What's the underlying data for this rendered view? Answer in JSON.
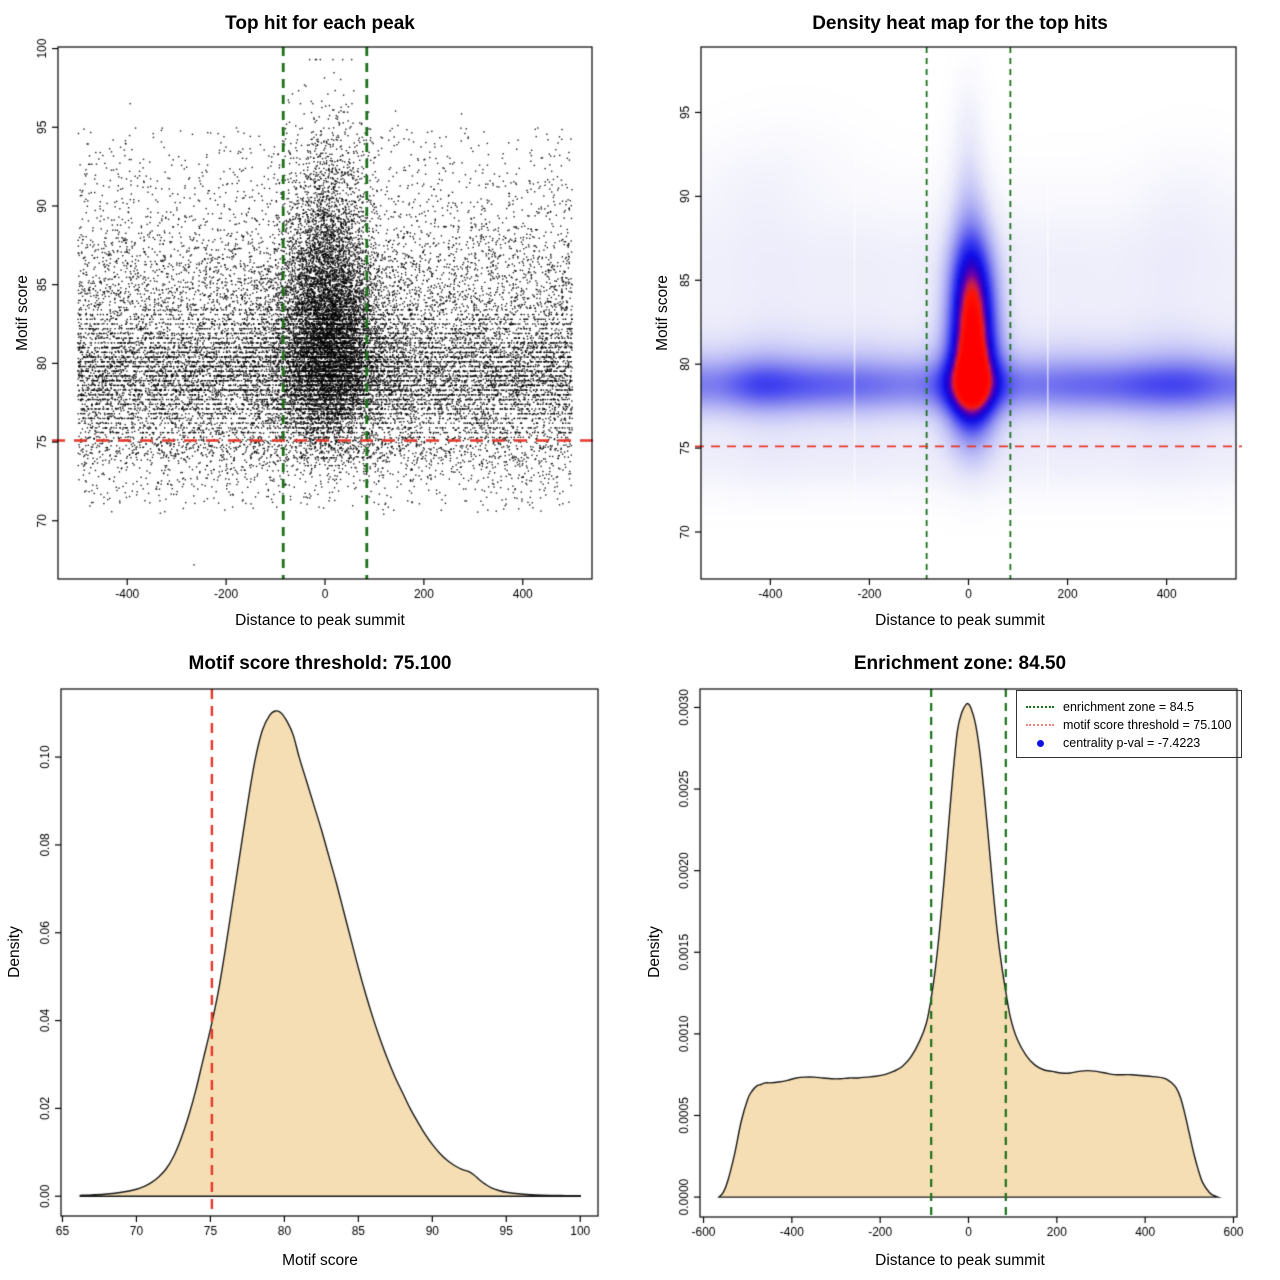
{
  "figure_background": "#ffffff",
  "chart_data": [
    {
      "type": "scatter",
      "title": "Top hit for each peak",
      "xlabel": "Distance to peak summit",
      "ylabel": "Motif score",
      "xlim": [
        -540,
        540
      ],
      "ylim": [
        66.3,
        100.1
      ],
      "xticks": [
        -400,
        -200,
        0,
        200,
        400
      ],
      "xtick_labels": [
        "-400",
        "-200",
        "0",
        "200",
        "400"
      ],
      "yticks": [
        70,
        75,
        80,
        85,
        90,
        95,
        100
      ],
      "ytick_labels": [
        "70",
        "75",
        "80",
        "85",
        "90",
        "95",
        "100"
      ],
      "point_color": "#000000",
      "annotations": {
        "vlines": {
          "x": [
            -84.5,
            84.5
          ],
          "color": "#1b701b",
          "style": "dashed",
          "meaning": "enrichment zone = 84.5"
        },
        "hlines": {
          "y": [
            75.1
          ],
          "color": "#e8362a",
          "style": "dashed",
          "meaning": "motif score threshold = 75.100"
        }
      },
      "generator": {
        "seed": 20240817,
        "background": {
          "n": 17000,
          "x_uniform": [
            -500,
            500
          ],
          "y_mixture": [
            {
              "w": 0.5,
              "mu": 79.2,
              "sd": 1.9
            },
            {
              "w": 0.18,
              "mu": 82.3,
              "sd": 2.9
            },
            {
              "w": 0.12,
              "mu": 86.0,
              "sd": 3.4
            },
            {
              "w": 0.1,
              "mu": 74.9,
              "sd": 1.3
            },
            {
              "w": 0.1,
              "uniform": [
                71,
                95
              ]
            }
          ],
          "y_clamp": [
            70.2,
            96.5
          ],
          "stripe": {
            "prob": 0.55,
            "grid": 0.3,
            "range": [
              75.3,
              83.5
            ]
          }
        },
        "central": {
          "n": 7000,
          "x_normal": {
            "mu": 8,
            "sd": 45
          },
          "x_clamp": [
            -135,
            140
          ],
          "y_mixture": [
            {
              "w": 0.48,
              "mu": 81.6,
              "sd": 2.7
            },
            {
              "w": 0.24,
              "mu": 85.5,
              "sd": 3.2
            },
            {
              "w": 0.15,
              "mu": 78.2,
              "sd": 1.8
            },
            {
              "w": 0.13,
              "mu": 90.0,
              "sd": 3.3
            }
          ],
          "y_clamp": [
            73.5,
            99.3
          ],
          "stripe": {
            "prob": 0.3,
            "grid": 0.3,
            "range": [
              75.3,
              83.5
            ]
          }
        },
        "mid": {
          "n": 2600,
          "x_normal": {
            "mu": 8,
            "sd": 75
          },
          "x_clamp": [
            -210,
            215
          ],
          "y_mixture": [
            {
              "w": 1.0,
              "mu": 80.8,
              "sd": 3.1
            }
          ],
          "y_clamp": [
            74,
            95
          ],
          "stripe": {
            "prob": 0.45,
            "grid": 0.3,
            "range": [
              75.3,
              83.5
            ]
          }
        },
        "sparse_low": {
          "n": 130,
          "x_uniform": [
            -495,
            495
          ],
          "y_uniform": [
            70.4,
            73.2
          ]
        },
        "outliers": [
          [
            -265,
            67.2
          ]
        ]
      }
    },
    {
      "type": "heatmap",
      "title": "Density heat map for the top hits",
      "xlabel": "Distance to peak summit",
      "ylabel": "Motif score",
      "xlim": [
        -540,
        540
      ],
      "ylim": [
        67.2,
        98.9
      ],
      "xticks": [
        -400,
        -200,
        0,
        200,
        400
      ],
      "xtick_labels": [
        "-400",
        "-200",
        "0",
        "200",
        "400"
      ],
      "yticks": [
        70,
        75,
        80,
        85,
        90,
        95
      ],
      "ytick_labels": [
        "70",
        "75",
        "80",
        "85",
        "90",
        "95"
      ],
      "hotspot": {
        "x": 8,
        "y": 81.3,
        "note": "red density maximum"
      },
      "annotations": {
        "vlines": {
          "x": [
            -84.5,
            84.5
          ],
          "color": "#1b701b",
          "style": "dashed",
          "meaning": "enrichment zone = 84.5"
        },
        "hlines": {
          "y": [
            75.1
          ],
          "color": "#e8362a",
          "style": "dashed",
          "meaning": "motif score threshold = 75.100"
        }
      },
      "field": {
        "normalizer": 2.2,
        "components": [
          {
            "x0": 0,
            "y0": 78.7,
            "sx": 100000,
            "sy": 1.6,
            "a": 0.5
          },
          {
            "x0": 0,
            "y0": 79.5,
            "sx": 100000,
            "sy": 3.2,
            "a": 0.28
          },
          {
            "x0": 0,
            "y0": 74.6,
            "sx": 100000,
            "sy": 2.3,
            "a": 0.13
          },
          {
            "x0": 0,
            "y0": 86.0,
            "sx": 100000,
            "sy": 4.2,
            "a": 0.12
          },
          {
            "x0": -430,
            "y0": 78.8,
            "sx": 70,
            "sy": 1.7,
            "a": 0.13
          },
          {
            "x0": -300,
            "y0": 78.6,
            "sx": 70,
            "sy": 1.6,
            "a": 0.08
          },
          {
            "x0": 310,
            "y0": 78.6,
            "sx": 90,
            "sy": 1.7,
            "a": 0.1
          },
          {
            "x0": 470,
            "y0": 78.9,
            "sx": 70,
            "sy": 2.0,
            "a": 0.11
          },
          {
            "x0": -470,
            "y0": 90.5,
            "sx": 110,
            "sy": 3.0,
            "a": 0.05
          },
          {
            "x0": -340,
            "y0": 92.0,
            "sx": 120,
            "sy": 3.0,
            "a": 0.035
          },
          {
            "x0": 460,
            "y0": 90.0,
            "sx": 110,
            "sy": 3.2,
            "a": 0.05
          },
          {
            "x0": 8,
            "y0": 81.6,
            "sx": 46,
            "sy": 4.6,
            "a": 1.9
          },
          {
            "x0": 5,
            "y0": 78.0,
            "sx": 52,
            "sy": 2.3,
            "a": 0.42
          },
          {
            "x0": 4,
            "y0": 86.5,
            "sx": 40,
            "sy": 3.4,
            "a": 0.38
          },
          {
            "x0": 0,
            "y0": 91.0,
            "sx": 36,
            "sy": 3.2,
            "a": 0.15
          },
          {
            "x0": 0,
            "y0": 95.0,
            "sx": 32,
            "sy": 2.6,
            "a": 0.07
          }
        ],
        "white_gaps_x": [
          -230,
          160
        ],
        "colormap": [
          [
            0.0,
            "#ffffff"
          ],
          [
            0.08,
            "#e8e8fa"
          ],
          [
            0.2,
            "#b9b9f6"
          ],
          [
            0.32,
            "#8585f0"
          ],
          [
            0.45,
            "#4444f0"
          ],
          [
            0.58,
            "#0f0fe8"
          ],
          [
            0.68,
            "#2a00c8"
          ],
          [
            0.76,
            "#6e00a8"
          ],
          [
            0.83,
            "#c41e50"
          ],
          [
            0.9,
            "#ff1400"
          ],
          [
            1.0,
            "#ff0000"
          ]
        ]
      }
    },
    {
      "type": "area",
      "title": "Motif score threshold: 75.100",
      "xlabel": "Motif score",
      "ylabel": "Density",
      "xlim": [
        64.9,
        101.2
      ],
      "ylim": [
        -0.0045,
        0.1155
      ],
      "xticks": [
        65,
        70,
        75,
        80,
        85,
        90,
        95,
        100
      ],
      "xtick_labels": [
        "65",
        "70",
        "75",
        "80",
        "85",
        "90",
        "95",
        "100"
      ],
      "yticks": [
        0,
        0.02,
        0.04,
        0.06,
        0.08,
        0.1
      ],
      "ytick_labels": [
        "0.00",
        "0.02",
        "0.04",
        "0.06",
        "0.08",
        "0.10"
      ],
      "fill_color": "#f5deb3",
      "line_color": "#1a1a1a",
      "annotations": {
        "vlines": {
          "x": [
            75.1
          ],
          "color": "#e8362a",
          "style": "dashed",
          "meaning": "motif score threshold = 75.100"
        }
      },
      "series": {
        "x": [
          66.2,
          67,
          68,
          69,
          70,
          70.5,
          71,
          71.5,
          72,
          72.5,
          73,
          73.5,
          74,
          74.5,
          75,
          75.5,
          76,
          76.5,
          77,
          77.5,
          78,
          78.5,
          79,
          79.4,
          79.8,
          80.2,
          80.6,
          81,
          81.5,
          82,
          82.5,
          83,
          83.5,
          84,
          84.5,
          85,
          85.5,
          86,
          86.5,
          87,
          87.5,
          88,
          88.5,
          89,
          89.5,
          90,
          90.5,
          91,
          91.5,
          92,
          92.4,
          92.8,
          93.2,
          93.6,
          94,
          94.5,
          95,
          96,
          97,
          98,
          99,
          100
        ],
        "y": [
          0.0002,
          0.0003,
          0.0005,
          0.0009,
          0.0016,
          0.0022,
          0.0031,
          0.0044,
          0.0062,
          0.009,
          0.013,
          0.018,
          0.024,
          0.031,
          0.038,
          0.046,
          0.056,
          0.067,
          0.078,
          0.089,
          0.099,
          0.106,
          0.1095,
          0.1105,
          0.11,
          0.108,
          0.105,
          0.1,
          0.0945,
          0.089,
          0.0835,
          0.0775,
          0.0715,
          0.065,
          0.0585,
          0.052,
          0.046,
          0.0405,
          0.0355,
          0.031,
          0.027,
          0.0235,
          0.02,
          0.017,
          0.0142,
          0.0118,
          0.0098,
          0.0082,
          0.007,
          0.0061,
          0.0057,
          0.0049,
          0.0037,
          0.0027,
          0.0019,
          0.0013,
          0.0009,
          0.0005,
          0.0003,
          0.0002,
          0.00015,
          0.0001
        ]
      }
    },
    {
      "type": "area",
      "title": "Enrichment zone: 84.50",
      "xlabel": "Distance to peak summit",
      "ylabel": "Density",
      "xlim": [
        -608,
        608
      ],
      "ylim": [
        -0.000122,
        0.003113
      ],
      "xticks": [
        -600,
        -400,
        -200,
        0,
        200,
        400,
        600
      ],
      "xtick_labels": [
        "-600",
        "-400",
        "-200",
        "0",
        "200",
        "400",
        "600"
      ],
      "yticks": [
        0,
        0.0005,
        0.001,
        0.0015,
        0.002,
        0.0025,
        0.003
      ],
      "ytick_labels": [
        "0.0000",
        "0.0005",
        "0.0010",
        "0.0015",
        "0.0020",
        "0.0025",
        "0.0030"
      ],
      "fill_color": "#f5deb3",
      "line_color": "#1a1a1a",
      "annotations": {
        "vlines": {
          "x": [
            -84.5,
            84.5
          ],
          "color": "#1b701b",
          "style": "dashed",
          "meaning": "enrichment zone = 84.5"
        }
      },
      "legend": {
        "items": [
          {
            "label": "enrichment zone = 84.5",
            "marker": "dotted-line",
            "color": "#1b701b"
          },
          {
            "label": "motif score threshold = 75.100",
            "marker": "dotted-line",
            "color": "#f08478"
          },
          {
            "label": "centrality p-val = -7.4223",
            "marker": "dot",
            "color": "#1010e8"
          }
        ]
      },
      "series": {
        "x": [
          -565,
          -555,
          -545,
          -530,
          -515,
          -500,
          -490,
          -480,
          -470,
          -460,
          -450,
          -430,
          -410,
          -390,
          -370,
          -350,
          -330,
          -310,
          -290,
          -270,
          -250,
          -230,
          -210,
          -190,
          -170,
          -150,
          -130,
          -110,
          -95,
          -85,
          -75,
          -65,
          -55,
          -45,
          -35,
          -25,
          -15,
          -5,
          0,
          5,
          15,
          25,
          35,
          45,
          55,
          65,
          75,
          85,
          95,
          110,
          130,
          150,
          170,
          190,
          210,
          230,
          250,
          270,
          290,
          310,
          330,
          350,
          370,
          390,
          410,
          430,
          440,
          450,
          460,
          470,
          480,
          490,
          500,
          510,
          520,
          530,
          545,
          555,
          565
        ],
        "y": [
          0,
          3e-05,
          0.0001,
          0.00026,
          0.00046,
          0.0006,
          0.00065,
          0.00068,
          0.00069,
          0.0007,
          0.0007,
          0.000705,
          0.000715,
          0.00073,
          0.000735,
          0.000735,
          0.00073,
          0.000725,
          0.000725,
          0.00073,
          0.00073,
          0.000735,
          0.00074,
          0.00075,
          0.00077,
          0.0008,
          0.00086,
          0.00096,
          0.00107,
          0.00121,
          0.0014,
          0.00165,
          0.00195,
          0.00228,
          0.0026,
          0.00286,
          0.00297,
          0.00302,
          0.00302,
          0.003,
          0.00291,
          0.00274,
          0.00249,
          0.0022,
          0.0019,
          0.00163,
          0.00142,
          0.00125,
          0.0011,
          0.00097,
          0.00087,
          0.00081,
          0.00078,
          0.00077,
          0.00076,
          0.00076,
          0.00077,
          0.000775,
          0.00077,
          0.00076,
          0.00075,
          0.00075,
          0.00075,
          0.000745,
          0.00074,
          0.000735,
          0.00073,
          0.00072,
          0.0007,
          0.00067,
          0.00061,
          0.00051,
          0.00039,
          0.00027,
          0.00017,
          9e-05,
          3e-05,
          1e-05,
          0
        ]
      }
    }
  ]
}
